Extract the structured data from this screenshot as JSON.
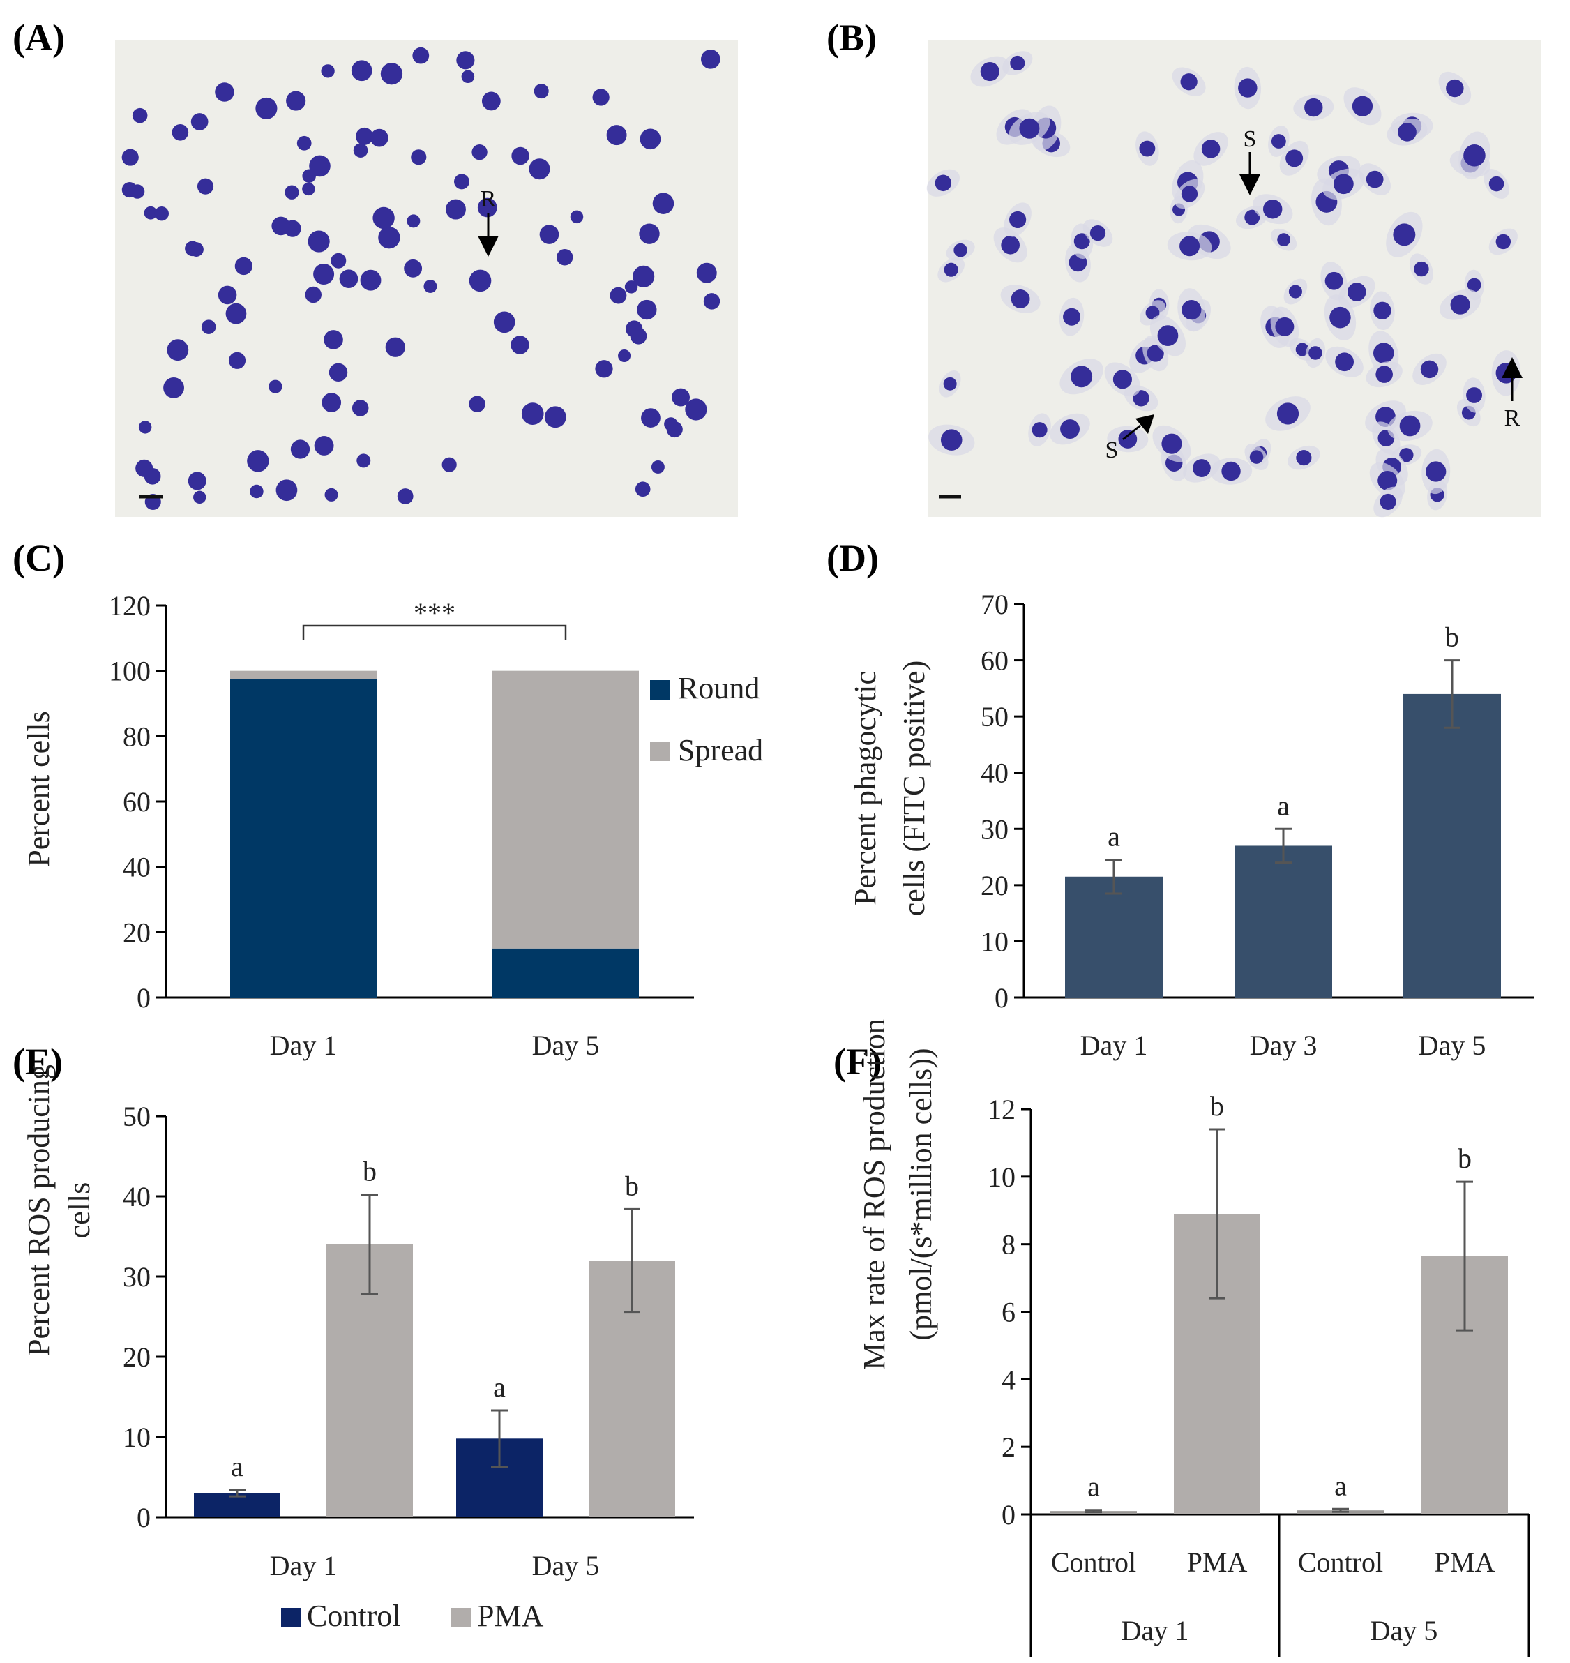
{
  "colors": {
    "round": "#003865",
    "spread": "#b1adab",
    "phago": "#374f6b",
    "control": "#0c2466",
    "pma": "#b1adab",
    "micro_bg": "#eeeee9",
    "cell": "#352d99"
  },
  "panels": {
    "a": "(A)",
    "b": "(B)",
    "c": "(C)",
    "d": "(D)",
    "e": "(E)",
    "f": "(F)"
  },
  "micrographs": {
    "a_arrow_label": "R",
    "b_arrow_labels": [
      "S",
      "S",
      "R"
    ]
  },
  "chart_data": [
    {
      "id": "C",
      "type": "bar",
      "stacked": true,
      "categories": [
        "Day 1",
        "Day 5"
      ],
      "series": [
        {
          "name": "Round",
          "values": [
            97.5,
            15
          ]
        },
        {
          "name": "Spread",
          "values": [
            2.5,
            85
          ]
        }
      ],
      "ylabel": "Percent cells",
      "ylim": [
        0,
        120
      ],
      "yticks": [
        "0",
        "20",
        "40",
        "60",
        "80",
        "100",
        "120"
      ],
      "significance": "***",
      "legend": [
        "Round",
        "Spread"
      ]
    },
    {
      "id": "D",
      "type": "bar",
      "categories": [
        "Day 1",
        "Day 3",
        "Day 5"
      ],
      "values": [
        21.5,
        27,
        54
      ],
      "errors": [
        3,
        3,
        6
      ],
      "letters": [
        "a",
        "a",
        "b"
      ],
      "ylabel_line1": "Percent  phagocytic",
      "ylabel_line2": "cells (FITC positive)",
      "ylim": [
        0,
        70
      ],
      "yticks": [
        "0",
        "10",
        "20",
        "30",
        "40",
        "50",
        "60",
        "70"
      ]
    },
    {
      "id": "E",
      "type": "bar",
      "categories": [
        "Day 1",
        "Day 5"
      ],
      "series": [
        {
          "name": "Control",
          "values": [
            3,
            9.8
          ],
          "errors": [
            0.4,
            3.5
          ],
          "letters": [
            "a",
            "a"
          ]
        },
        {
          "name": "PMA",
          "values": [
            34,
            32
          ],
          "errors": [
            6.2,
            6.4
          ],
          "letters": [
            "b",
            "b"
          ]
        }
      ],
      "ylabel_line1": "Percent ROS producing",
      "ylabel_line2": "cells",
      "ylim": [
        0,
        50
      ],
      "yticks": [
        "0",
        "10",
        "20",
        "30",
        "40",
        "50"
      ],
      "legend": [
        "Control",
        "PMA"
      ]
    },
    {
      "id": "F",
      "type": "bar",
      "groups": [
        "Day 1",
        "Day 5"
      ],
      "categories": [
        "Control",
        "PMA",
        "Control",
        "PMA"
      ],
      "values": [
        0.1,
        8.9,
        0.12,
        7.65
      ],
      "errors": [
        0.03,
        2.5,
        0.04,
        2.2
      ],
      "letters": [
        "a",
        "b",
        "a",
        "b"
      ],
      "ylabel_line1": "Max rate of ROS production",
      "ylabel_line2": "(pmol/(s*million cells))",
      "ylim": [
        0,
        12
      ],
      "yticks": [
        "0",
        "2",
        "4",
        "6",
        "8",
        "10",
        "12"
      ]
    }
  ]
}
